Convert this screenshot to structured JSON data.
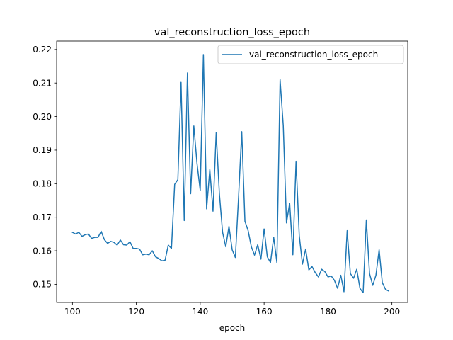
{
  "chart_data": {
    "type": "line",
    "title": "val_reconstruction_loss_epoch",
    "xlabel": "epoch",
    "ylabel": "",
    "xlim": [
      95.05,
      204.95
    ],
    "ylim": [
      0.1446,
      0.2225
    ],
    "xticks": [
      100,
      120,
      140,
      160,
      180,
      200
    ],
    "yticks": [
      0.15,
      0.16,
      0.17,
      0.18,
      0.19,
      0.2,
      0.21,
      0.22
    ],
    "ytick_labels": [
      "0.15",
      "0.16",
      "0.17",
      "0.18",
      "0.19",
      "0.20",
      "0.21",
      "0.22"
    ],
    "grid": false,
    "legend_position": "upper right",
    "series": [
      {
        "name": "val_reconstruction_loss_epoch",
        "color": "#1f77b4",
        "x": [
          100,
          101,
          102,
          103,
          104,
          105,
          106,
          107,
          108,
          109,
          110,
          111,
          112,
          113,
          114,
          115,
          116,
          117,
          118,
          119,
          120,
          121,
          122,
          123,
          124,
          125,
          126,
          127,
          128,
          129,
          130,
          131,
          132,
          133,
          134,
          135,
          136,
          137,
          138,
          139,
          140,
          141,
          142,
          143,
          144,
          145,
          146,
          147,
          148,
          149,
          150,
          151,
          152,
          153,
          154,
          155,
          156,
          157,
          158,
          159,
          160,
          161,
          162,
          163,
          164,
          165,
          166,
          167,
          168,
          169,
          170,
          171,
          172,
          173,
          174,
          175,
          176,
          177,
          178,
          179,
          180,
          181,
          182,
          183,
          184,
          185,
          186,
          187,
          188,
          189,
          190,
          191,
          192,
          193,
          194,
          195,
          196,
          197,
          198,
          199
        ],
        "y": [
          0.1655,
          0.165,
          0.1655,
          0.1643,
          0.1648,
          0.165,
          0.1637,
          0.164,
          0.164,
          0.1658,
          0.1633,
          0.1622,
          0.1628,
          0.1625,
          0.1617,
          0.1632,
          0.1618,
          0.1617,
          0.1627,
          0.1607,
          0.1607,
          0.1605,
          0.1588,
          0.159,
          0.1588,
          0.16,
          0.1582,
          0.1577,
          0.157,
          0.1572,
          0.1617,
          0.1607,
          0.1798,
          0.1812,
          0.2102,
          0.169,
          0.213,
          0.177,
          0.1972,
          0.186,
          0.178,
          0.2185,
          0.1725,
          0.1842,
          0.1718,
          0.1952,
          0.177,
          0.1655,
          0.1612,
          0.1673,
          0.1603,
          0.158,
          0.176,
          0.1955,
          0.1688,
          0.166,
          0.1612,
          0.1587,
          0.1618,
          0.1575,
          0.1665,
          0.1582,
          0.1565,
          0.164,
          0.1565,
          0.211,
          0.1973,
          0.1683,
          0.1742,
          0.1588,
          0.1867,
          0.1645,
          0.156,
          0.1605,
          0.1543,
          0.1553,
          0.1535,
          0.1522,
          0.1545,
          0.1538,
          0.1522,
          0.1525,
          0.1512,
          0.1488,
          0.1527,
          0.1478,
          0.166,
          0.1532,
          0.1518,
          0.1545,
          0.1488,
          0.1475,
          0.1692,
          0.1532,
          0.1497,
          0.1527,
          0.1603,
          0.1505,
          0.1485,
          0.148
        ]
      }
    ]
  }
}
